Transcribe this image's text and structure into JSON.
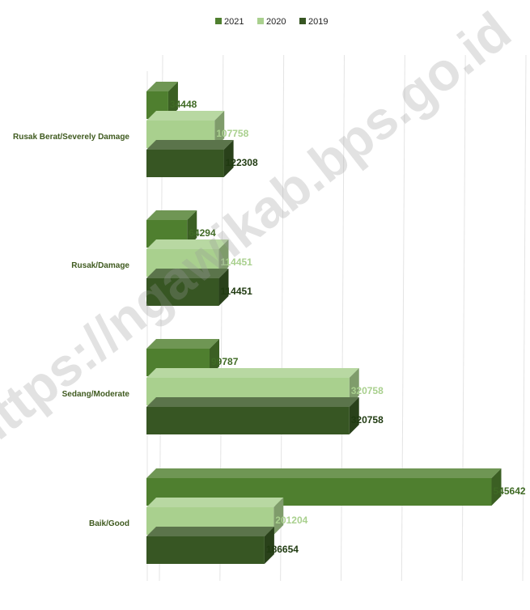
{
  "chart_data": {
    "type": "bar",
    "orientation": "horizontal",
    "three_d": true,
    "categories": [
      "Rusak Berat/Severely Damage",
      "Rusak/Damage",
      "Sedang/Moderate",
      "Baik/Good"
    ],
    "series": [
      {
        "name": "2021",
        "values": [
          34448,
          64294,
          99787,
          545642
        ],
        "color": "#4f7f2f",
        "label_color": "#3f6a24"
      },
      {
        "name": "2020",
        "values": [
          107758,
          114451,
          320758,
          201204
        ],
        "color": "#a9d08e",
        "label_color": "#a9d08e"
      },
      {
        "name": "2019",
        "values": [
          122308,
          114451,
          320758,
          186654
        ],
        "color": "#375623",
        "label_color": "#1f3a10"
      }
    ],
    "value_labels": [
      [
        "34448",
        "107758",
        "122308"
      ],
      [
        "64294",
        "114451",
        "114451"
      ],
      [
        "99787",
        "320758",
        "320758"
      ],
      [
        "545642",
        "201204",
        "186654"
      ]
    ],
    "xlim": [
      0,
      600000
    ],
    "grid": true,
    "legend_position": "top"
  },
  "legend": [
    {
      "label": "2021",
      "color": "#4f7f2f"
    },
    {
      "label": "2020",
      "color": "#a9d08e"
    },
    {
      "label": "2019",
      "color": "#375623"
    }
  ],
  "watermark": "https://ngawikab.bps.go.id"
}
